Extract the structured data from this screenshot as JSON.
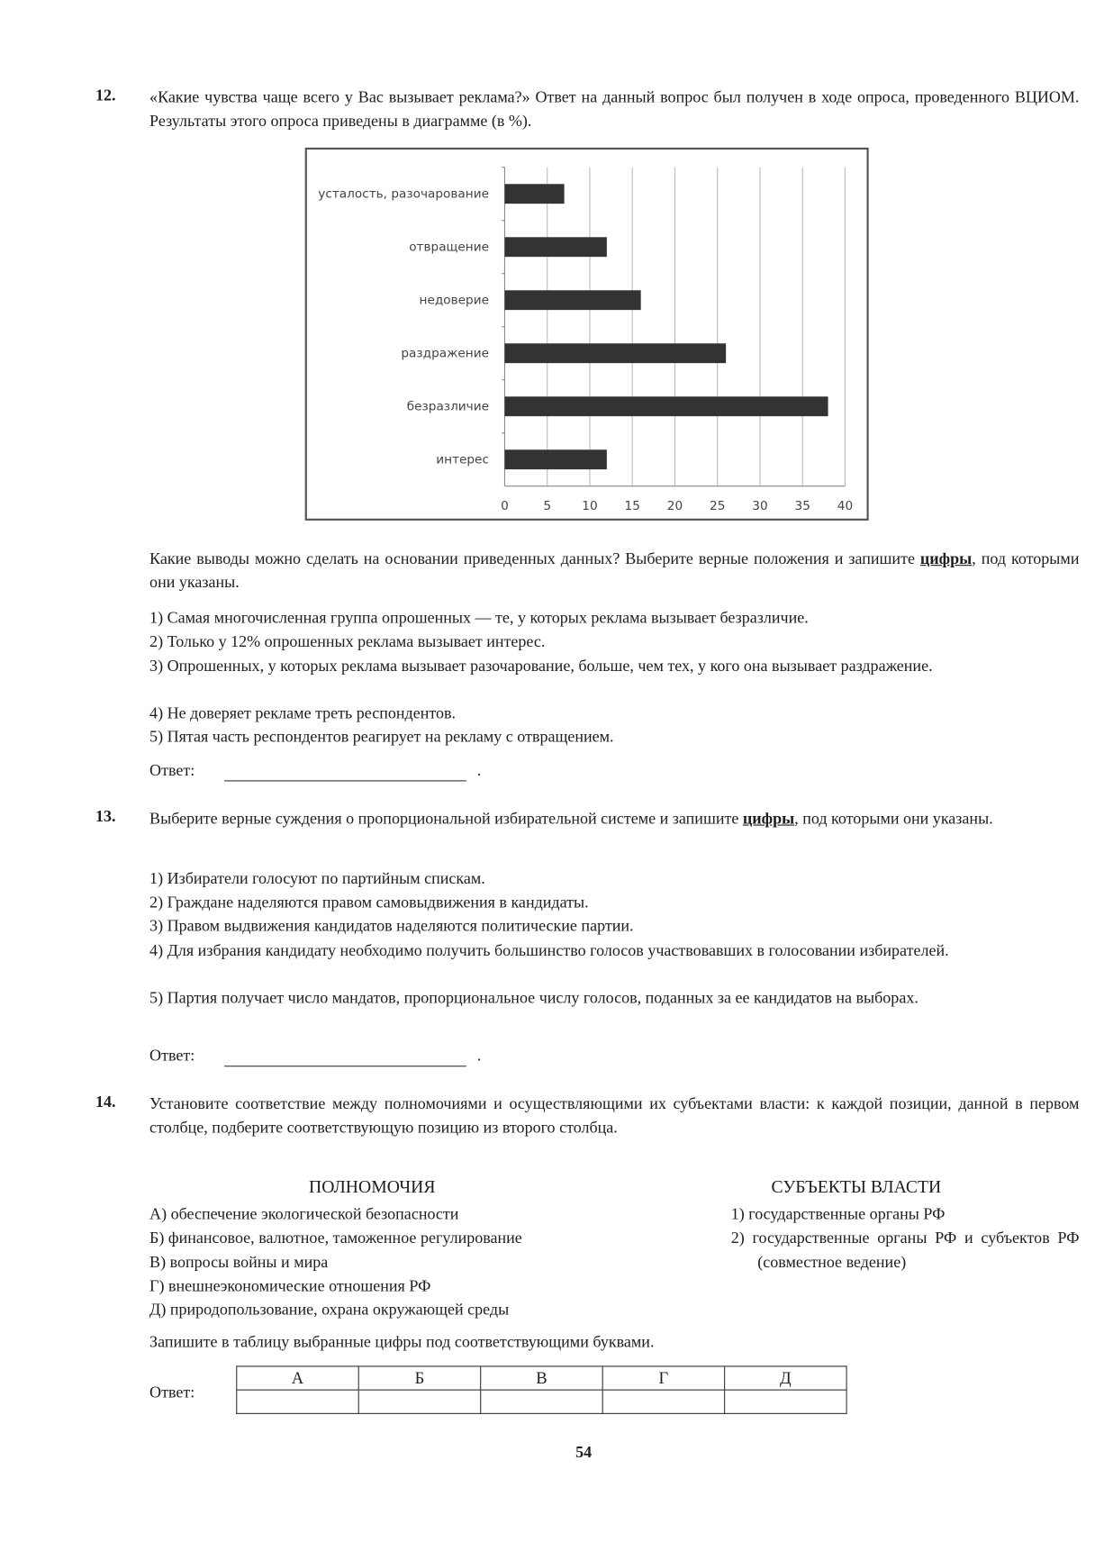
{
  "q12": {
    "number": "12.",
    "text": "«Какие чувства чаще всего у Вас вызывает реклама?» Ответ на данный вопрос был получен в ходе опроса, проведенного ВЦИОМ. Результаты этого опроса приведены в диаграмме (в %).",
    "prompt_pre": "Какие выводы можно сделать на основании приведенных данных? Выберите верные положения и запишите ",
    "prompt_bold": "цифры",
    "prompt_post": ", под которыми они указаны.",
    "options": [
      "1) Самая многочисленная группа опрошенных — те, у которых реклама вызывает безразличие.",
      "2) Только у 12% опрошенных реклама вызывает интерес.",
      "3) Опрошенных, у которых реклама вызывает разочарование, больше, чем тех, у кого она вызывает раздражение.",
      "4) Не доверяет рекламе треть респондентов.",
      "5) Пятая часть респондентов реагирует на рекламу с отвращением."
    ],
    "answer_label": "Ответ:",
    "answer_dot": "."
  },
  "chart_data": {
    "type": "bar",
    "orientation": "horizontal",
    "categories": [
      "усталость, разочарование",
      "отвращение",
      "недоверие",
      "раздражение",
      "безразличие",
      "интерес"
    ],
    "values": [
      7,
      12,
      16,
      26,
      38,
      12
    ],
    "xlim": [
      0,
      40
    ],
    "xticks": [
      "0",
      "5",
      "10",
      "15",
      "20",
      "25",
      "30",
      "35",
      "40"
    ],
    "grid": true,
    "bar_color": "#333333"
  },
  "q13": {
    "number": "13.",
    "text_pre": "Выберите верные суждения о пропорциональной избирательной системе и запишите ",
    "text_bold": "цифры",
    "text_post": ", под которыми они указаны.",
    "options": [
      "1) Избиратели голосуют по партийным спискам.",
      "2) Граждане наделяются правом самовыдвижения в кандидаты.",
      "3) Правом выдвижения кандидатов наделяются политические партии.",
      "4) Для избрания кандидату необходимо получить большинство голосов участвовавших в голосовании избирателей.",
      "5) Партия получает число мандатов, пропорциональное числу голосов, поданных за ее кандидатов на выборах."
    ],
    "answer_label": "Ответ:",
    "answer_dot": "."
  },
  "q14": {
    "number": "14.",
    "text": "Установите соответствие между полномочиями и осуществляющими их субъектами власти: к каждой позиции, данной в первом столбце, подберите соответствующую позицию из второго столбца.",
    "left_header": "ПОЛНОМОЧИЯ",
    "left_items": [
      "А) обеспечение экологической безопасности",
      "Б) финансовое, валютное, таможенное регулирование",
      "В) вопросы войны и мира",
      "Г) внешнеэкономические отношения РФ",
      "Д) природопользование, охрана окружающей среды"
    ],
    "right_header": "СУБЪЕКТЫ ВЛАСТИ",
    "right_items": [
      "1) государственные органы РФ",
      "2) государственные органы РФ и субъектов РФ (совместное ведение)"
    ],
    "instruction": "Запишите в таблицу выбранные цифры под соответствующими буквами.",
    "answer_label": "Ответ:",
    "table_headers": [
      "А",
      "Б",
      "В",
      "Г",
      "Д"
    ]
  },
  "page_number": "54"
}
